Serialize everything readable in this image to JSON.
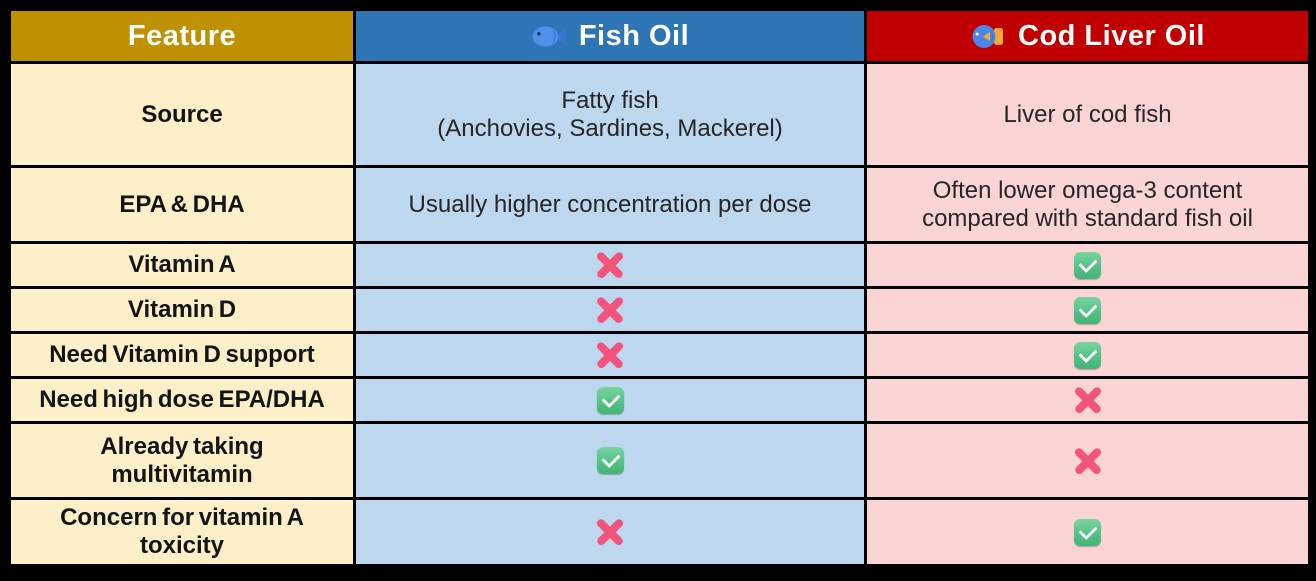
{
  "colors": {
    "header_gold": "#BF9000",
    "header_blue": "#2E75B6",
    "header_red": "#C00000",
    "header_text": "#FFFFFF",
    "cell_cream": "#FDF0C9",
    "cell_blue": "#BDD7EE",
    "cell_pink": "#FBD5D6",
    "body_text": "#262626",
    "check_green": "#55C386",
    "cross_pink": "#F4537C",
    "border_black": "#000000"
  },
  "table": {
    "columns": [
      {
        "label": "Feature",
        "icon": null
      },
      {
        "label": "Fish Oil",
        "icon": "fish-icon"
      },
      {
        "label": "Cod Liver Oil",
        "icon": "tropical-fish-icon"
      }
    ],
    "rows": [
      {
        "feature": "Source",
        "fish_oil": {
          "kind": "text",
          "value": "Fatty fish\n(Anchovies, Sardines, Mackerel)"
        },
        "cod_liver_oil": {
          "kind": "text",
          "value": "Liver of cod fish"
        }
      },
      {
        "feature": "EPA & DHA",
        "fish_oil": {
          "kind": "text",
          "value": "Usually higher concentration per dose"
        },
        "cod_liver_oil": {
          "kind": "text",
          "value": "Often lower omega-3 content\ncompared with standard fish oil"
        }
      },
      {
        "feature": "Vitamin A",
        "fish_oil": {
          "kind": "cross"
        },
        "cod_liver_oil": {
          "kind": "check"
        }
      },
      {
        "feature": "Vitamin D",
        "fish_oil": {
          "kind": "cross"
        },
        "cod_liver_oil": {
          "kind": "check"
        }
      },
      {
        "feature": "Need Vitamin D support",
        "fish_oil": {
          "kind": "cross"
        },
        "cod_liver_oil": {
          "kind": "check"
        }
      },
      {
        "feature": "Need high dose EPA/DHA",
        "fish_oil": {
          "kind": "check"
        },
        "cod_liver_oil": {
          "kind": "cross"
        }
      },
      {
        "feature": "Already taking\nmultivitamin",
        "fish_oil": {
          "kind": "check"
        },
        "cod_liver_oil": {
          "kind": "cross"
        }
      },
      {
        "feature": "Concern for vitamin A\ntoxicity",
        "fish_oil": {
          "kind": "cross"
        },
        "cod_liver_oil": {
          "kind": "check"
        }
      }
    ]
  },
  "chart_data": {
    "type": "table",
    "columns": [
      "Feature",
      "Fish Oil",
      "Cod Liver Oil"
    ],
    "rows": [
      [
        "Source",
        "Fatty fish (Anchovies, Sardines, Mackerel)",
        "Liver of cod fish"
      ],
      [
        "EPA & DHA",
        "Usually higher concentration per dose",
        "Often lower omega-3 content compared with standard fish oil"
      ],
      [
        "Vitamin A",
        "❌",
        "✅"
      ],
      [
        "Vitamin D",
        "❌",
        "✅"
      ],
      [
        "Need Vitamin D support",
        "❌",
        "✅"
      ],
      [
        "Need high dose EPA/DHA",
        "✅",
        "❌"
      ],
      [
        "Already taking multivitamin",
        "✅",
        "❌"
      ],
      [
        "Concern for vitamin A toxicity",
        "❌",
        "✅"
      ]
    ]
  }
}
